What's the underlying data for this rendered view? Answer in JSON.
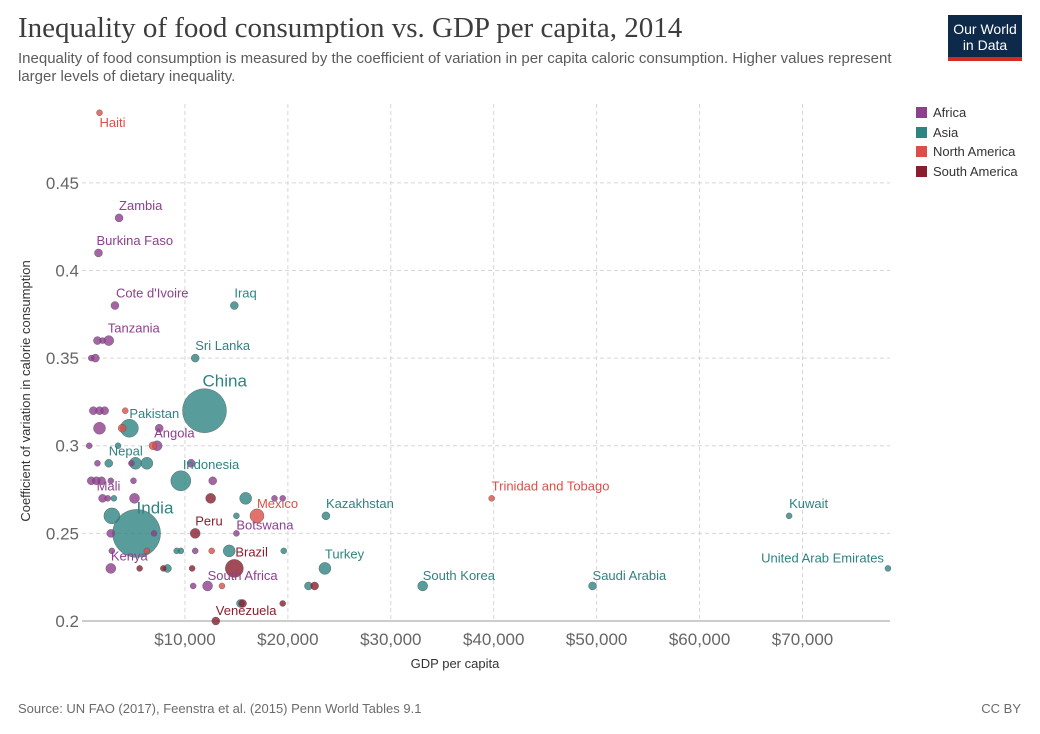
{
  "header": {
    "title": "Inequality of food consumption vs. GDP per capita, 2014",
    "subtitle": "Inequality of food consumption is measured by the coefficient of variation in per capita caloric consumption. Higher values represent larger levels of dietary inequality.",
    "logo_line1": "Our World",
    "logo_line2": "in Data"
  },
  "footer": {
    "source": "Source: UN FAO (2017), Feenstra et al. (2015) Penn World Tables 9.1",
    "license": "CC BY"
  },
  "colors": {
    "Africa": "#8e3f8e",
    "Asia": "#2e8383",
    "North America": "#dc4f48",
    "South America": "#8b1e2e"
  },
  "chart_data": {
    "type": "scatter",
    "xlabel": "GDP per capita",
    "ylabel": "Coefficient of variation in calorie consumption",
    "xlim": [
      0,
      78500
    ],
    "ylim": [
      0.2,
      0.495
    ],
    "x_ticks": [
      10000,
      20000,
      30000,
      40000,
      50000,
      60000,
      70000
    ],
    "x_tick_labels": [
      "$10,000",
      "$20,000",
      "$30,000",
      "$40,000",
      "$50,000",
      "$60,000",
      "$70,000"
    ],
    "y_ticks": [
      0.2,
      0.25,
      0.3,
      0.35,
      0.4,
      0.45
    ],
    "y_tick_labels": [
      "0.2",
      "0.25",
      "0.3",
      "0.35",
      "0.4",
      "0.45"
    ],
    "grid": true,
    "legend": [
      "Africa",
      "Asia",
      "North America",
      "South America"
    ],
    "legend_position": "right",
    "points": [
      {
        "label": "Haiti",
        "x": 1700,
        "y": 0.49,
        "continent": "North America",
        "size": 3
      },
      {
        "label": "Zambia",
        "x": 3600,
        "y": 0.43,
        "continent": "Africa",
        "size": 4
      },
      {
        "label": "Burkina Faso",
        "x": 1600,
        "y": 0.41,
        "continent": "Africa",
        "size": 4
      },
      {
        "label": "Cote d'Ivoire",
        "x": 3200,
        "y": 0.38,
        "continent": "Africa",
        "size": 4
      },
      {
        "label": "Iraq",
        "x": 14800,
        "y": 0.38,
        "continent": "Asia",
        "size": 4
      },
      {
        "label": "Tanzania",
        "x": 2600,
        "y": 0.36,
        "continent": "Africa",
        "size": 5
      },
      {
        "label": "Sri Lanka",
        "x": 11000,
        "y": 0.35,
        "continent": "Asia",
        "size": 4
      },
      {
        "label": "China",
        "x": 11900,
        "y": 0.32,
        "continent": "Asia",
        "size": 22
      },
      {
        "label": "Pakistan",
        "x": 4600,
        "y": 0.31,
        "continent": "Asia",
        "size": 9
      },
      {
        "label": "Angola",
        "x": 7300,
        "y": 0.3,
        "continent": "Africa",
        "size": 5
      },
      {
        "label": "Nepal",
        "x": 2600,
        "y": 0.29,
        "continent": "Asia",
        "size": 4
      },
      {
        "label": "Indonesia",
        "x": 9600,
        "y": 0.28,
        "continent": "Asia",
        "size": 10
      },
      {
        "label": "Mali",
        "x": 2000,
        "y": 0.27,
        "continent": "Africa",
        "size": 4
      },
      {
        "label": "Mexico",
        "x": 17000,
        "y": 0.26,
        "continent": "North America",
        "size": 7
      },
      {
        "label": "Kazakhstan",
        "x": 23700,
        "y": 0.26,
        "continent": "Asia",
        "size": 4
      },
      {
        "label": "Trinidad and Tobago",
        "x": 39800,
        "y": 0.27,
        "continent": "North America",
        "size": 3
      },
      {
        "label": "Kuwait",
        "x": 68700,
        "y": 0.26,
        "continent": "Asia",
        "size": 3
      },
      {
        "label": "India",
        "x": 5300,
        "y": 0.25,
        "continent": "Asia",
        "size": 24
      },
      {
        "label": "Peru",
        "x": 11000,
        "y": 0.25,
        "continent": "South America",
        "size": 5
      },
      {
        "label": "Botswana",
        "x": 15000,
        "y": 0.25,
        "continent": "Africa",
        "size": 3
      },
      {
        "label": "Brazil",
        "x": 14800,
        "y": 0.23,
        "continent": "South America",
        "size": 9
      },
      {
        "label": "Kenya",
        "x": 2800,
        "y": 0.23,
        "continent": "Africa",
        "size": 5
      },
      {
        "label": "South Africa",
        "x": 12200,
        "y": 0.22,
        "continent": "Africa",
        "size": 5
      },
      {
        "label": "Turkey",
        "x": 23600,
        "y": 0.23,
        "continent": "Asia",
        "size": 6
      },
      {
        "label": "South Korea",
        "x": 33100,
        "y": 0.22,
        "continent": "Asia",
        "size": 5
      },
      {
        "label": "Saudi Arabia",
        "x": 49600,
        "y": 0.22,
        "continent": "Asia",
        "size": 4
      },
      {
        "label": "United Arab Emirates",
        "x": 78300,
        "y": 0.23,
        "continent": "Asia",
        "size": 3
      },
      {
        "label": "Venezuela",
        "x": 13000,
        "y": 0.2,
        "continent": "South America",
        "size": 4
      },
      {
        "label": "",
        "x": 900,
        "y": 0.35,
        "continent": "Africa",
        "size": 3
      },
      {
        "label": "",
        "x": 1300,
        "y": 0.35,
        "continent": "Africa",
        "size": 4
      },
      {
        "label": "",
        "x": 1500,
        "y": 0.36,
        "continent": "Africa",
        "size": 4
      },
      {
        "label": "",
        "x": 2000,
        "y": 0.36,
        "continent": "Africa",
        "size": 3
      },
      {
        "label": "",
        "x": 1100,
        "y": 0.32,
        "continent": "Africa",
        "size": 4
      },
      {
        "label": "",
        "x": 1700,
        "y": 0.32,
        "continent": "Africa",
        "size": 4
      },
      {
        "label": "",
        "x": 2200,
        "y": 0.32,
        "continent": "Africa",
        "size": 4
      },
      {
        "label": "",
        "x": 1700,
        "y": 0.31,
        "continent": "Africa",
        "size": 6
      },
      {
        "label": "",
        "x": 4200,
        "y": 0.32,
        "continent": "North America",
        "size": 3
      },
      {
        "label": "",
        "x": 3900,
        "y": 0.31,
        "continent": "North America",
        "size": 4
      },
      {
        "label": "",
        "x": 7500,
        "y": 0.31,
        "continent": "Africa",
        "size": 4
      },
      {
        "label": "",
        "x": 700,
        "y": 0.3,
        "continent": "Africa",
        "size": 3
      },
      {
        "label": "",
        "x": 3500,
        "y": 0.3,
        "continent": "Asia",
        "size": 3
      },
      {
        "label": "",
        "x": 6900,
        "y": 0.3,
        "continent": "North America",
        "size": 4
      },
      {
        "label": "",
        "x": 5200,
        "y": 0.29,
        "continent": "Asia",
        "size": 6
      },
      {
        "label": "",
        "x": 6300,
        "y": 0.29,
        "continent": "Asia",
        "size": 6
      },
      {
        "label": "",
        "x": 1500,
        "y": 0.29,
        "continent": "Africa",
        "size": 3
      },
      {
        "label": "",
        "x": 4800,
        "y": 0.29,
        "continent": "Africa",
        "size": 3
      },
      {
        "label": "",
        "x": 10600,
        "y": 0.29,
        "continent": "Africa",
        "size": 4
      },
      {
        "label": "",
        "x": 900,
        "y": 0.28,
        "continent": "Africa",
        "size": 4
      },
      {
        "label": "",
        "x": 1400,
        "y": 0.28,
        "continent": "Africa",
        "size": 4
      },
      {
        "label": "",
        "x": 1900,
        "y": 0.28,
        "continent": "Africa",
        "size": 4
      },
      {
        "label": "",
        "x": 2800,
        "y": 0.28,
        "continent": "Africa",
        "size": 3
      },
      {
        "label": "",
        "x": 5000,
        "y": 0.28,
        "continent": "Africa",
        "size": 3
      },
      {
        "label": "",
        "x": 12700,
        "y": 0.28,
        "continent": "Africa",
        "size": 4
      },
      {
        "label": "",
        "x": 2500,
        "y": 0.27,
        "continent": "Africa",
        "size": 3
      },
      {
        "label": "",
        "x": 3100,
        "y": 0.27,
        "continent": "Asia",
        "size": 3
      },
      {
        "label": "",
        "x": 5100,
        "y": 0.27,
        "continent": "Africa",
        "size": 5
      },
      {
        "label": "",
        "x": 12500,
        "y": 0.27,
        "continent": "South America",
        "size": 5
      },
      {
        "label": "",
        "x": 15900,
        "y": 0.27,
        "continent": "Asia",
        "size": 6
      },
      {
        "label": "",
        "x": 18700,
        "y": 0.27,
        "continent": "Africa",
        "size": 3
      },
      {
        "label": "",
        "x": 19500,
        "y": 0.27,
        "continent": "Africa",
        "size": 3
      },
      {
        "label": "",
        "x": 2900,
        "y": 0.26,
        "continent": "Asia",
        "size": 8
      },
      {
        "label": "",
        "x": 15000,
        "y": 0.26,
        "continent": "Asia",
        "size": 3
      },
      {
        "label": "",
        "x": 2800,
        "y": 0.25,
        "continent": "Africa",
        "size": 4
      },
      {
        "label": "",
        "x": 7000,
        "y": 0.25,
        "continent": "Africa",
        "size": 3
      },
      {
        "label": "",
        "x": 2900,
        "y": 0.24,
        "continent": "Africa",
        "size": 3
      },
      {
        "label": "",
        "x": 6300,
        "y": 0.24,
        "continent": "North America",
        "size": 3
      },
      {
        "label": "",
        "x": 9200,
        "y": 0.24,
        "continent": "Asia",
        "size": 3
      },
      {
        "label": "",
        "x": 9600,
        "y": 0.24,
        "continent": "Asia",
        "size": 3
      },
      {
        "label": "",
        "x": 11000,
        "y": 0.24,
        "continent": "Africa",
        "size": 3
      },
      {
        "label": "",
        "x": 12600,
        "y": 0.24,
        "continent": "North America",
        "size": 3
      },
      {
        "label": "",
        "x": 14300,
        "y": 0.24,
        "continent": "Asia",
        "size": 6
      },
      {
        "label": "",
        "x": 19600,
        "y": 0.24,
        "continent": "Asia",
        "size": 3
      },
      {
        "label": "",
        "x": 5600,
        "y": 0.23,
        "continent": "South America",
        "size": 3
      },
      {
        "label": "",
        "x": 7900,
        "y": 0.23,
        "continent": "South America",
        "size": 3
      },
      {
        "label": "",
        "x": 8300,
        "y": 0.23,
        "continent": "Asia",
        "size": 4
      },
      {
        "label": "",
        "x": 10700,
        "y": 0.23,
        "continent": "South America",
        "size": 3
      },
      {
        "label": "",
        "x": 10800,
        "y": 0.22,
        "continent": "Africa",
        "size": 3
      },
      {
        "label": "",
        "x": 13600,
        "y": 0.22,
        "continent": "North America",
        "size": 3
      },
      {
        "label": "",
        "x": 22000,
        "y": 0.22,
        "continent": "Asia",
        "size": 4
      },
      {
        "label": "",
        "x": 22600,
        "y": 0.22,
        "continent": "South America",
        "size": 4
      },
      {
        "label": "",
        "x": 15400,
        "y": 0.21,
        "continent": "Asia",
        "size": 4
      },
      {
        "label": "",
        "x": 15600,
        "y": 0.21,
        "continent": "South America",
        "size": 4
      },
      {
        "label": "",
        "x": 19500,
        "y": 0.21,
        "continent": "South America",
        "size": 3
      }
    ]
  }
}
